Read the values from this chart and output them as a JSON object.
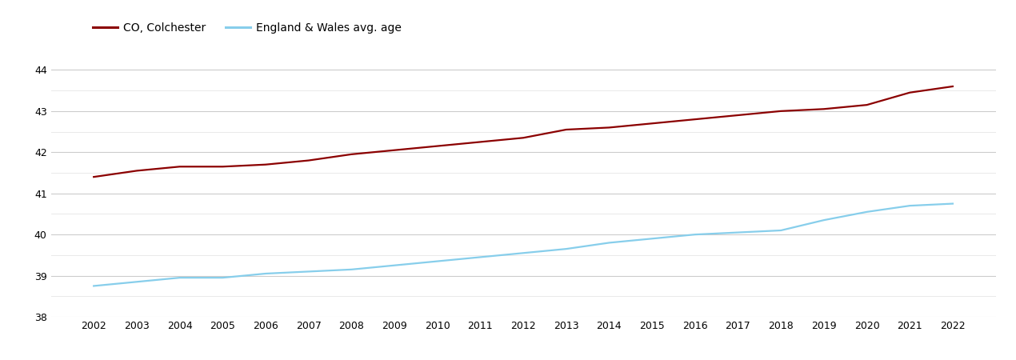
{
  "years": [
    2002,
    2003,
    2004,
    2005,
    2006,
    2007,
    2008,
    2009,
    2010,
    2011,
    2012,
    2013,
    2014,
    2015,
    2016,
    2017,
    2018,
    2019,
    2020,
    2021,
    2022
  ],
  "colchester": [
    41.4,
    41.55,
    41.65,
    41.65,
    41.7,
    41.8,
    41.95,
    42.05,
    42.15,
    42.25,
    42.35,
    42.55,
    42.6,
    42.7,
    42.8,
    42.9,
    43.0,
    43.05,
    43.15,
    43.45,
    43.6
  ],
  "england_wales": [
    38.75,
    38.85,
    38.95,
    38.95,
    39.05,
    39.1,
    39.15,
    39.25,
    39.35,
    39.45,
    39.55,
    39.65,
    39.8,
    39.9,
    40.0,
    40.05,
    40.1,
    40.35,
    40.55,
    40.7,
    40.75
  ],
  "colchester_color": "#8B0000",
  "england_wales_color": "#87CEEB",
  "background_color": "#ffffff",
  "grid_color_major": "#cccccc",
  "grid_color_minor": "#e5e5e5",
  "legend_colchester": "CO, Colchester",
  "legend_england_wales": "England & Wales avg. age",
  "ylim": [
    38,
    44.65
  ],
  "yticks_major": [
    38,
    39,
    40,
    41,
    42,
    43,
    44
  ],
  "yticks_minor": [
    38.5,
    39.5,
    40.5,
    41.5,
    42.5,
    43.5
  ],
  "line_width": 1.6,
  "figsize": [
    12.7,
    4.5
  ],
  "dpi": 100
}
